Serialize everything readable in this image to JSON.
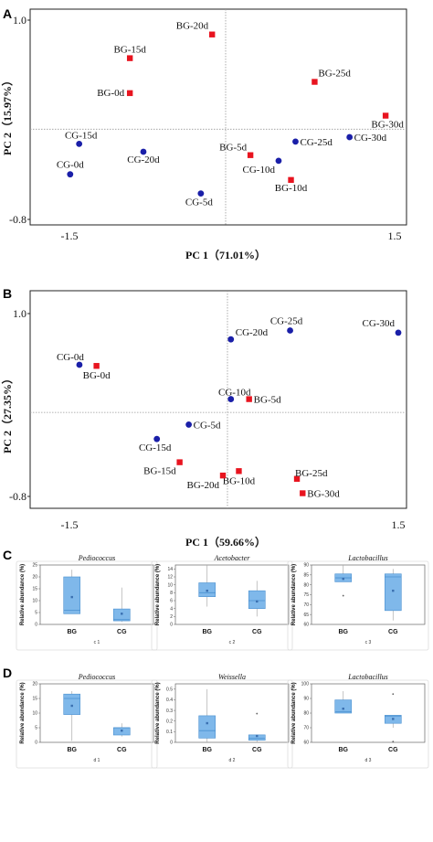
{
  "chart_data": [
    {
      "type": "scatter",
      "panel": "A",
      "xlabel": "PC 1（71.01%）",
      "ylabel": "PC 2（15.97%）",
      "xlim": [
        -1.5,
        1.5
      ],
      "ylim": [
        -0.8,
        1.0
      ],
      "xticks": [
        "-1.5",
        "1.5"
      ],
      "yticks": [
        "1.0",
        "-0.8"
      ],
      "grid": "origin lines dotted",
      "colors": {
        "BG": "#e8141f",
        "CG": "#1a1fa8"
      },
      "series": [
        {
          "name": "BG",
          "points": [
            {
              "label": "BG-0d",
              "x": -0.85,
              "y": 0.32
            },
            {
              "label": "BG-5d",
              "x": 0.22,
              "y": -0.23
            },
            {
              "label": "BG-10d",
              "x": 0.58,
              "y": -0.45
            },
            {
              "label": "BG-15d",
              "x": -0.85,
              "y": 0.63
            },
            {
              "label": "BG-20d",
              "x": -0.12,
              "y": 0.84
            },
            {
              "label": "BG-25d",
              "x": 0.79,
              "y": 0.42
            },
            {
              "label": "BG-30d",
              "x": 1.42,
              "y": 0.12
            }
          ]
        },
        {
          "name": "CG",
          "points": [
            {
              "label": "CG-0d",
              "x": -1.38,
              "y": -0.4
            },
            {
              "label": "CG-5d",
              "x": -0.22,
              "y": -0.57
            },
            {
              "label": "CG-10d",
              "x": 0.47,
              "y": -0.28
            },
            {
              "label": "CG-15d",
              "x": -1.3,
              "y": -0.13
            },
            {
              "label": "CG-20d",
              "x": -0.73,
              "y": -0.2
            },
            {
              "label": "CG-25d",
              "x": 0.62,
              "y": -0.11
            },
            {
              "label": "CG-30d",
              "x": 1.1,
              "y": -0.07
            }
          ]
        }
      ]
    },
    {
      "type": "scatter",
      "panel": "B",
      "xlabel": "PC 1（59.66%）",
      "ylabel": "PC 2（27.35%）",
      "xlim": [
        -1.5,
        1.5
      ],
      "ylim": [
        -0.8,
        1.0
      ],
      "xticks": [
        "-1.5",
        "1.5"
      ],
      "yticks": [
        "1.0",
        "-0.8"
      ],
      "grid": "origin lines dotted",
      "colors": {
        "BG": "#e8141f",
        "CG": "#1a1fa8"
      },
      "series": [
        {
          "name": "BG",
          "points": [
            {
              "label": "BG-0d",
              "x": -1.15,
              "y": 0.42
            },
            {
              "label": "BG-5d",
              "x": 0.19,
              "y": 0.12
            },
            {
              "label": "BG-10d",
              "x": 0.1,
              "y": -0.53
            },
            {
              "label": "BG-15d",
              "x": -0.42,
              "y": -0.45
            },
            {
              "label": "BG-20d",
              "x": -0.04,
              "y": -0.57
            },
            {
              "label": "BG-25d",
              "x": 0.61,
              "y": -0.6
            },
            {
              "label": "BG-30d",
              "x": 0.66,
              "y": -0.73
            }
          ]
        },
        {
          "name": "CG",
          "points": [
            {
              "label": "CG-0d",
              "x": -1.3,
              "y": 0.43
            },
            {
              "label": "CG-5d",
              "x": -0.34,
              "y": -0.11
            },
            {
              "label": "CG-10d",
              "x": 0.03,
              "y": 0.12
            },
            {
              "label": "CG-15d",
              "x": -0.62,
              "y": -0.24
            },
            {
              "label": "CG-20d",
              "x": 0.03,
              "y": 0.66
            },
            {
              "label": "CG-25d",
              "x": 0.55,
              "y": 0.74
            },
            {
              "label": "CG-30d",
              "x": 1.5,
              "y": 0.72
            }
          ]
        }
      ]
    },
    {
      "type": "box",
      "panel": "C",
      "subplots": [
        {
          "title": "Pediococcus",
          "sublabel": "c 1",
          "ylabel": "Relative abundance (%)",
          "ylim": [
            0,
            25
          ],
          "yticks": [
            0,
            5,
            10,
            15,
            20,
            25
          ],
          "categories": [
            "BG",
            "CG"
          ],
          "boxes": [
            {
              "min": 4.5,
              "q1": 4.5,
              "median": 6,
              "q3": 20,
              "max": 23,
              "mean": 11.5
            },
            {
              "min": 1,
              "q1": 1.5,
              "median": 2,
              "q3": 6.5,
              "max": 15.5,
              "mean": 4.5
            }
          ]
        },
        {
          "title": "Acetobacter",
          "sublabel": "c 2",
          "ylabel": "Relative abundance (%)",
          "ylim": [
            0,
            15
          ],
          "yticks": [
            0,
            2,
            4,
            6,
            8,
            10,
            12,
            14
          ],
          "categories": [
            "BG",
            "CG"
          ],
          "boxes": [
            {
              "min": 4.5,
              "q1": 7,
              "median": 8,
              "q3": 10.5,
              "max": 15,
              "mean": 8.5
            },
            {
              "min": 2,
              "q1": 4,
              "median": 6,
              "q3": 8.5,
              "max": 11,
              "mean": 5.8
            }
          ]
        },
        {
          "title": "Lactobacillus",
          "sublabel": "c 3",
          "ylabel": "Relative abundance (%)",
          "ylim": [
            60,
            90
          ],
          "yticks": [
            60,
            65,
            70,
            75,
            80,
            85,
            90
          ],
          "categories": [
            "BG",
            "CG"
          ],
          "boxes": [
            {
              "min": 81.5,
              "q1": 81.5,
              "median": 83.5,
              "q3": 85.5,
              "max": 90,
              "mean": 83,
              "outliers": [
                74.5
              ]
            },
            {
              "min": 62,
              "q1": 67,
              "median": 84,
              "q3": 85.5,
              "max": 88,
              "mean": 77
            }
          ]
        }
      ]
    },
    {
      "type": "box",
      "panel": "D",
      "subplots": [
        {
          "title": "Pediococcus",
          "sublabel": "d 1",
          "ylabel": "Relative abundance (%)",
          "ylim": [
            0,
            20
          ],
          "yticks": [
            0,
            5,
            10,
            15,
            20
          ],
          "categories": [
            "BG",
            "CG"
          ],
          "boxes": [
            {
              "min": 0.5,
              "q1": 9.5,
              "median": 15,
              "q3": 16.5,
              "max": 17.5,
              "mean": 12.5
            },
            {
              "min": 2,
              "q1": 2.5,
              "median": 5,
              "q3": 5,
              "max": 6.5,
              "mean": 4
            }
          ]
        },
        {
          "title": "Weissella",
          "sublabel": "d 2",
          "ylabel": "Relative abundance (%)",
          "ylim": [
            0,
            0.55
          ],
          "yticks": [
            0.0,
            0.1,
            0.2,
            0.3,
            0.4,
            0.5
          ],
          "categories": [
            "BG",
            "CG"
          ],
          "boxes": [
            {
              "min": 0,
              "q1": 0.04,
              "median": 0.11,
              "q3": 0.25,
              "max": 0.5,
              "mean": 0.18
            },
            {
              "min": 0,
              "q1": 0.02,
              "median": 0.04,
              "q3": 0.07,
              "max": 0.07,
              "mean": 0.06,
              "outliers": [
                0.27
              ]
            }
          ]
        },
        {
          "title": "Lactobacillus",
          "sublabel": "d 3",
          "ylabel": "Relative abundance (%)",
          "ylim": [
            60,
            100
          ],
          "yticks": [
            60,
            70,
            80,
            90,
            100
          ],
          "categories": [
            "BG",
            "CG"
          ],
          "boxes": [
            {
              "min": 80,
              "q1": 80,
              "median": 81,
              "q3": 89,
              "max": 95,
              "mean": 83
            },
            {
              "min": 70,
              "q1": 73,
              "median": 78,
              "q3": 78.5,
              "max": 78.5,
              "mean": 76,
              "outliers": [
                93,
                60.5
              ]
            }
          ]
        }
      ]
    }
  ]
}
